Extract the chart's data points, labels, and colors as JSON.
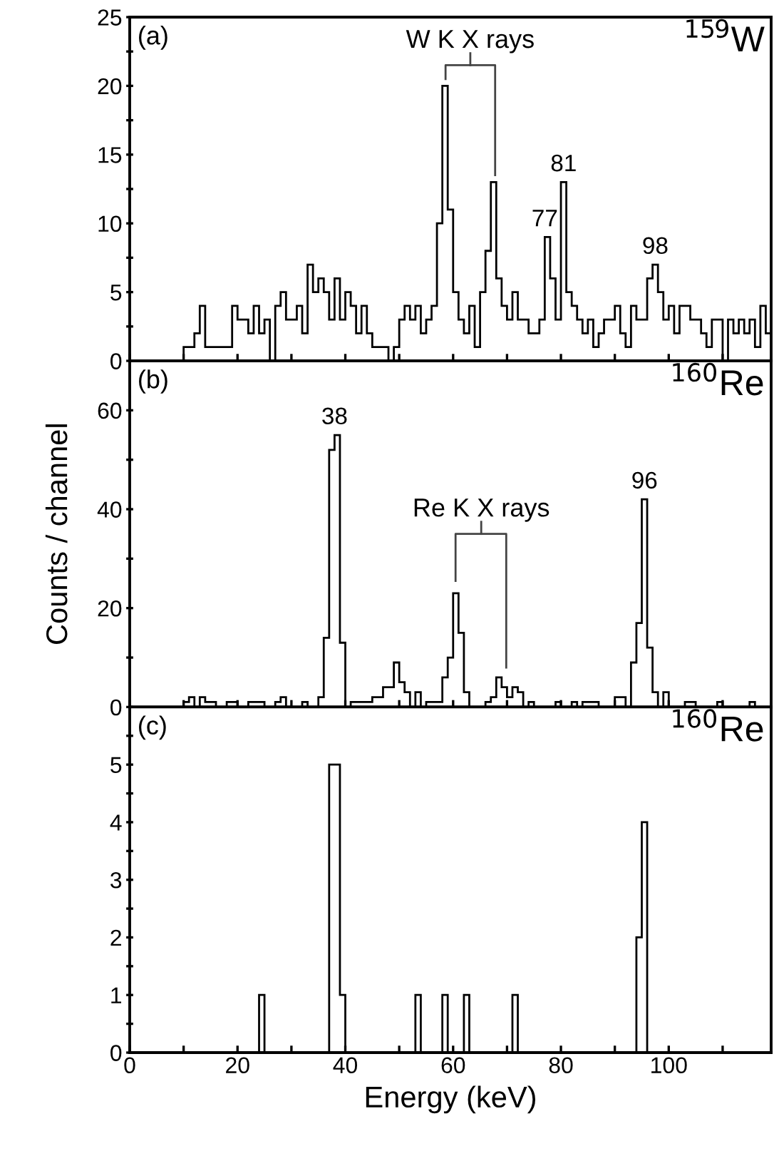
{
  "chart_data": [
    {
      "type": "histogram",
      "color": "#000000",
      "bins": [
        0,
        1,
        2,
        3,
        4,
        5,
        6,
        7,
        8,
        9,
        10,
        11,
        12,
        13,
        14,
        15,
        16,
        17,
        18,
        19,
        20,
        21,
        22,
        23,
        24,
        25,
        26,
        27,
        28,
        29,
        30,
        31,
        32,
        33,
        34,
        35,
        36,
        37,
        38,
        39,
        40,
        41,
        42,
        43,
        44,
        45,
        46,
        47,
        48,
        49,
        50,
        51,
        52,
        53,
        54,
        55,
        56,
        57,
        58,
        59,
        60,
        61,
        62,
        63,
        64,
        65,
        66,
        67,
        68,
        69,
        70,
        71,
        72,
        73,
        74,
        75,
        76,
        77,
        78,
        79,
        80,
        81,
        82,
        83,
        84,
        85,
        86,
        87,
        88,
        89,
        90,
        91,
        92,
        93,
        94,
        95,
        96,
        97,
        98,
        99,
        100,
        101,
        102,
        103,
        104,
        105,
        106,
        107,
        108,
        109,
        110,
        111,
        112,
        113,
        114,
        115,
        116,
        117,
        118,
        119
      ],
      "values": [
        0,
        0,
        0,
        0,
        0,
        0,
        0,
        0,
        0,
        0,
        1,
        1,
        2,
        4,
        1,
        1,
        1,
        1,
        1,
        4,
        3,
        3,
        2,
        4,
        2,
        3,
        0,
        4,
        5,
        3,
        3,
        4,
        2,
        7,
        5,
        6,
        5,
        3,
        6,
        3,
        5,
        4,
        2,
        4,
        2,
        1,
        1,
        1,
        0,
        1,
        3,
        4,
        3,
        4,
        2,
        3,
        4,
        10,
        20,
        11,
        5,
        3,
        2,
        4,
        1,
        5,
        8,
        13,
        6,
        4,
        3,
        5,
        3,
        3,
        2,
        2,
        3,
        9,
        6,
        3,
        13,
        5,
        4,
        3,
        2,
        3,
        1,
        2,
        3,
        3,
        4,
        2,
        1,
        4,
        3,
        3,
        6,
        7,
        5,
        3,
        4,
        2,
        4,
        4,
        3,
        3,
        2,
        1,
        3,
        3,
        0,
        3,
        2,
        3,
        2,
        3,
        1,
        4,
        2
      ],
      "xlim": [
        0,
        119
      ],
      "ylim": [
        0,
        25
      ],
      "xticks": [
        0,
        {
          "value": 10,
          "label": null
        },
        20,
        {
          "value": 30,
          "label": null
        },
        40,
        {
          "value": 50,
          "label": null
        },
        60,
        {
          "value": 70,
          "label": null
        },
        80,
        {
          "value": 90,
          "label": null
        },
        100,
        {
          "value": 110,
          "label": null
        }
      ],
      "yticks": [
        0,
        {
          "value": 2.5,
          "label": null
        },
        5,
        {
          "value": 7.5,
          "label": null
        },
        10,
        {
          "value": 12.5,
          "label": null
        },
        15,
        {
          "value": 17.5,
          "label": null
        },
        20,
        {
          "value": 22.5,
          "label": null
        },
        25
      ],
      "tick_labels": "y",
      "annotations": [
        "(a)",
        "$^{159}$W",
        "W K X rays",
        {
          "text": "77",
          "x": 77,
          "y": 9
        },
        {
          "text": "81",
          "x": 80.5,
          "y": 13
        },
        {
          "text": "98",
          "x": 97.5,
          "y": 7
        }
      ]
    },
    {
      "type": "histogram",
      "color": "#000000",
      "bins": [
        0,
        1,
        2,
        3,
        4,
        5,
        6,
        7,
        8,
        9,
        10,
        11,
        12,
        13,
        14,
        15,
        16,
        17,
        18,
        19,
        20,
        21,
        22,
        23,
        24,
        25,
        26,
        27,
        28,
        29,
        30,
        31,
        32,
        33,
        34,
        35,
        36,
        37,
        38,
        39,
        40,
        41,
        42,
        43,
        44,
        45,
        46,
        47,
        48,
        49,
        50,
        51,
        52,
        53,
        54,
        55,
        56,
        57,
        58,
        59,
        60,
        61,
        62,
        63,
        64,
        65,
        66,
        67,
        68,
        69,
        70,
        71,
        72,
        73,
        74,
        75,
        76,
        77,
        78,
        79,
        80,
        81,
        82,
        83,
        84,
        85,
        86,
        87,
        88,
        89,
        90,
        91,
        92,
        93,
        94,
        95,
        96,
        97,
        98,
        99,
        100,
        101,
        102,
        103,
        104,
        105,
        106,
        107,
        108,
        109,
        110,
        111,
        112,
        113,
        114,
        115,
        116,
        117,
        118,
        119
      ],
      "values": [
        0,
        0,
        0,
        0,
        0,
        0,
        0,
        0,
        0,
        0,
        1,
        2,
        0,
        2,
        1,
        1,
        0,
        0,
        1,
        1,
        0,
        0,
        1,
        1,
        1,
        0,
        0,
        1,
        2,
        0,
        0,
        0,
        1,
        0,
        0,
        2,
        14,
        52,
        55,
        13,
        0,
        1,
        1,
        1,
        1,
        2,
        2,
        4,
        4,
        9,
        5,
        3,
        0,
        3,
        0,
        1,
        1,
        1,
        6,
        10,
        23,
        15,
        3,
        0,
        0,
        0,
        1,
        2,
        6,
        4,
        2,
        4,
        3,
        0,
        1,
        0,
        0,
        0,
        0,
        1,
        0,
        0,
        1,
        0,
        1,
        1,
        1,
        0,
        0,
        0,
        2,
        2,
        0,
        9,
        17,
        42,
        12,
        3,
        0,
        3,
        0,
        0,
        0,
        1,
        1,
        0,
        0,
        0,
        0,
        1,
        0,
        0,
        0,
        0,
        0,
        1,
        0,
        0,
        0
      ],
      "xlim": [
        0,
        119
      ],
      "ylim": [
        0,
        70
      ],
      "xticks": [
        0,
        {
          "value": 10,
          "label": null
        },
        20,
        {
          "value": 30,
          "label": null
        },
        40,
        {
          "value": 50,
          "label": null
        },
        60,
        {
          "value": 70,
          "label": null
        },
        80,
        {
          "value": 90,
          "label": null
        },
        100,
        {
          "value": 110,
          "label": null
        }
      ],
      "yticks": [
        0,
        {
          "value": 10,
          "label": null
        },
        20,
        {
          "value": 30,
          "label": null
        },
        40,
        {
          "value": 50,
          "label": null
        },
        60
      ],
      "tick_labels": "y",
      "ylabel": "Counts / channel",
      "annotations": [
        "(b)",
        "$^{160}$Re",
        "Re K X rays",
        {
          "text": "38",
          "x": 38,
          "y": 55
        },
        {
          "text": "96",
          "x": 95.5,
          "y": 42
        }
      ]
    },
    {
      "type": "histogram",
      "color": "#000000",
      "bins": [
        0,
        1,
        2,
        3,
        4,
        5,
        6,
        7,
        8,
        9,
        10,
        11,
        12,
        13,
        14,
        15,
        16,
        17,
        18,
        19,
        20,
        21,
        22,
        23,
        24,
        25,
        26,
        27,
        28,
        29,
        30,
        31,
        32,
        33,
        34,
        35,
        36,
        37,
        38,
        39,
        40,
        41,
        42,
        43,
        44,
        45,
        46,
        47,
        48,
        49,
        50,
        51,
        52,
        53,
        54,
        55,
        56,
        57,
        58,
        59,
        60,
        61,
        62,
        63,
        64,
        65,
        66,
        67,
        68,
        69,
        70,
        71,
        72,
        73,
        74,
        75,
        76,
        77,
        78,
        79,
        80,
        81,
        82,
        83,
        84,
        85,
        86,
        87,
        88,
        89,
        90,
        91,
        92,
        93,
        94,
        95,
        96,
        97,
        98,
        99,
        100,
        101,
        102,
        103,
        104,
        105,
        106,
        107,
        108,
        109,
        110,
        111,
        112,
        113,
        114,
        115,
        116,
        117,
        118,
        119
      ],
      "values": [
        0,
        0,
        0,
        0,
        0,
        0,
        0,
        0,
        0,
        0,
        0,
        0,
        0,
        0,
        0,
        0,
        0,
        0,
        0,
        0,
        0,
        0,
        0,
        0,
        1,
        0,
        0,
        0,
        0,
        0,
        0,
        0,
        0,
        0,
        0,
        0,
        0,
        5,
        5,
        1,
        0,
        0,
        0,
        0,
        0,
        0,
        0,
        0,
        0,
        0,
        0,
        0,
        0,
        1,
        0,
        0,
        0,
        0,
        1,
        0,
        0,
        0,
        1,
        0,
        0,
        0,
        0,
        0,
        0,
        0,
        0,
        1,
        0,
        0,
        0,
        0,
        0,
        0,
        0,
        0,
        0,
        0,
        0,
        0,
        0,
        0,
        0,
        0,
        0,
        0,
        0,
        0,
        0,
        0,
        2,
        4,
        0,
        0,
        0,
        0,
        0,
        0,
        0,
        0,
        0,
        0,
        0,
        0,
        0,
        0,
        0,
        0,
        0,
        0,
        0,
        0,
        0,
        0,
        0
      ],
      "xlim": [
        0,
        119
      ],
      "ylim": [
        0,
        6
      ],
      "xticks": [
        0,
        {
          "value": 10,
          "label": null
        },
        20,
        {
          "value": 30,
          "label": null
        },
        40,
        {
          "value": 50,
          "label": null
        },
        60,
        {
          "value": 70,
          "label": null
        },
        80,
        {
          "value": 90,
          "label": null
        },
        100,
        {
          "value": 110,
          "label": null
        }
      ],
      "yticks": [
        0,
        {
          "value": 0.5,
          "label": null
        },
        1,
        {
          "value": 1.5,
          "label": null
        },
        2,
        {
          "value": 2.5,
          "label": null
        },
        3,
        {
          "value": 3.5,
          "label": null
        },
        4,
        {
          "value": 4.5,
          "label": null
        },
        5,
        {
          "value": 5.5,
          "label": null
        }
      ],
      "xlabel": "Energy (keV)",
      "annotations": [
        "(c)",
        "$^{160}$Re"
      ]
    }
  ]
}
